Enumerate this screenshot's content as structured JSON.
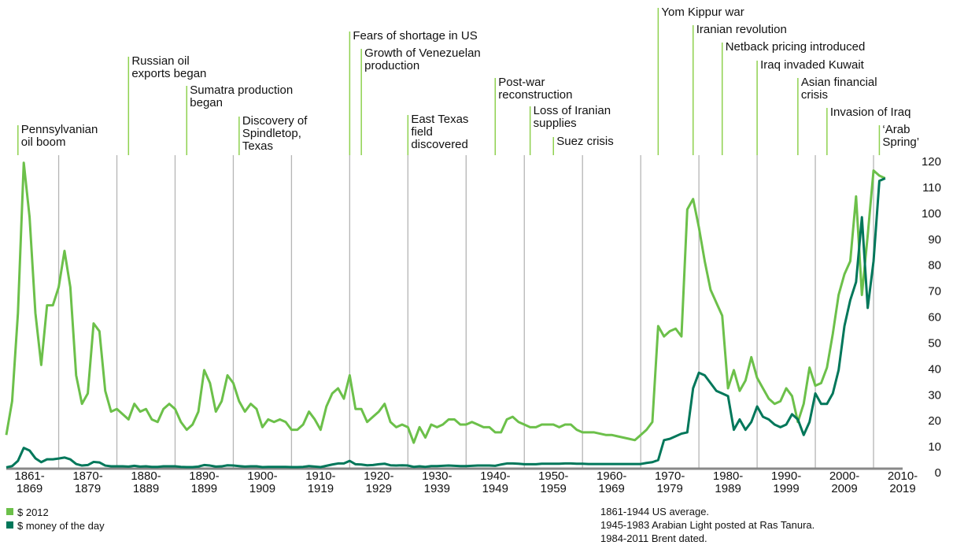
{
  "chart_data": {
    "type": "line",
    "x": [
      1861,
      1862,
      1863,
      1864,
      1865,
      1866,
      1867,
      1868,
      1869,
      1870,
      1871,
      1872,
      1873,
      1874,
      1875,
      1876,
      1877,
      1878,
      1879,
      1880,
      1881,
      1882,
      1883,
      1884,
      1885,
      1886,
      1887,
      1888,
      1889,
      1890,
      1891,
      1892,
      1893,
      1894,
      1895,
      1896,
      1897,
      1898,
      1899,
      1900,
      1901,
      1902,
      1903,
      1904,
      1905,
      1906,
      1907,
      1908,
      1909,
      1910,
      1911,
      1912,
      1913,
      1914,
      1915,
      1916,
      1917,
      1918,
      1919,
      1920,
      1921,
      1922,
      1923,
      1924,
      1925,
      1926,
      1927,
      1928,
      1929,
      1930,
      1931,
      1932,
      1933,
      1934,
      1935,
      1936,
      1937,
      1938,
      1939,
      1940,
      1941,
      1942,
      1943,
      1944,
      1945,
      1946,
      1947,
      1948,
      1949,
      1950,
      1951,
      1952,
      1953,
      1954,
      1955,
      1956,
      1957,
      1958,
      1959,
      1960,
      1961,
      1962,
      1963,
      1964,
      1965,
      1966,
      1967,
      1968,
      1969,
      1970,
      1971,
      1972,
      1973,
      1974,
      1975,
      1976,
      1977,
      1978,
      1979,
      1980,
      1981,
      1982,
      1983,
      1984,
      1985,
      1986,
      1987,
      1988,
      1989,
      1990,
      1991,
      1992,
      1993,
      1994,
      1995,
      1996,
      1997,
      1998,
      1999,
      2000,
      2001,
      2002,
      2003,
      2004,
      2005,
      2006,
      2007,
      2008,
      2009,
      2010,
      2011,
      2012
    ],
    "series": [
      {
        "name": "$ 2012",
        "color": "#6cc04a",
        "values": [
          13,
          26,
          60,
          118,
          97,
          60,
          40,
          63,
          63,
          70,
          84,
          70,
          36,
          25,
          29,
          56,
          53,
          30,
          22,
          23,
          21,
          19,
          25,
          22,
          23,
          19,
          18,
          23,
          25,
          23,
          18,
          15,
          17,
          22,
          38,
          33,
          22,
          26,
          36,
          33,
          26,
          22,
          25,
          23,
          16,
          19,
          18,
          19,
          18,
          15,
          15,
          17,
          22,
          19,
          15,
          24,
          29,
          31,
          27,
          36,
          23,
          23,
          18,
          20,
          22,
          25,
          18,
          16,
          17,
          16,
          10,
          16,
          12,
          17,
          16,
          17,
          19,
          19,
          17,
          17,
          18,
          17,
          16,
          16,
          14,
          14,
          19,
          20,
          18,
          17,
          16,
          16,
          17,
          17,
          17,
          16,
          17,
          17,
          15,
          14,
          14,
          14,
          13.5,
          13,
          13,
          12.5,
          12,
          11.5,
          11,
          13,
          15,
          18,
          55,
          51,
          53,
          54,
          51,
          100,
          104,
          93,
          80,
          69,
          64,
          59,
          31,
          38,
          30,
          34,
          43,
          35,
          31,
          27,
          25,
          26,
          31,
          28,
          18,
          25,
          39,
          32,
          33,
          39,
          52,
          67,
          75,
          80,
          105,
          67,
          90,
          115,
          113,
          112
        ]
      },
      {
        "name": "$ money of the day",
        "color": "#00775a",
        "values": [
          0.5,
          1,
          3,
          8,
          7,
          4,
          2.5,
          3.6,
          3.6,
          3.9,
          4.3,
          3.6,
          1.8,
          1.2,
          1.4,
          2.6,
          2.4,
          1.2,
          0.9,
          0.9,
          0.9,
          0.8,
          1.1,
          0.8,
          0.9,
          0.7,
          0.7,
          0.9,
          0.9,
          0.9,
          0.7,
          0.6,
          0.6,
          0.8,
          1.4,
          1.2,
          0.8,
          0.9,
          1.3,
          1.2,
          1,
          0.8,
          0.9,
          0.9,
          0.6,
          0.7,
          0.7,
          0.7,
          0.7,
          0.6,
          0.6,
          0.7,
          1,
          0.8,
          0.6,
          1.1,
          1.6,
          2,
          2,
          3,
          1.7,
          1.6,
          1.3,
          1.4,
          1.7,
          1.9,
          1.3,
          1.2,
          1.3,
          1.2,
          0.7,
          0.9,
          0.7,
          1,
          1,
          1.1,
          1.2,
          1.1,
          1,
          1,
          1.1,
          1.2,
          1.2,
          1.2,
          1.1,
          1.6,
          2,
          2,
          1.9,
          1.7,
          1.7,
          1.7,
          1.9,
          1.9,
          1.9,
          1.9,
          2,
          2,
          1.9,
          1.9,
          1.8,
          1.8,
          1.8,
          1.8,
          1.8,
          1.8,
          1.8,
          1.8,
          1.8,
          1.8,
          2.2,
          2.5,
          3.3,
          11,
          11.5,
          12.5,
          13.5,
          14,
          31,
          37,
          36,
          33,
          30,
          29,
          28,
          15,
          19,
          15,
          18,
          24,
          20,
          19,
          17,
          16,
          17,
          21,
          19,
          13,
          18,
          29,
          25,
          25,
          29,
          38,
          55,
          65,
          72,
          97,
          62,
          80,
          111,
          112
        ]
      }
    ],
    "xlim": [
      1861,
      2015
    ],
    "xgrid": [
      1870,
      1880,
      1890,
      1900,
      1910,
      1920,
      1930,
      1940,
      1950,
      1960,
      1970,
      1980,
      1990,
      2000,
      2010
    ],
    "xticks": [
      {
        "value": 1865,
        "label": "1861-\n1869"
      },
      {
        "value": 1875,
        "label": "1870-\n1879"
      },
      {
        "value": 1885,
        "label": "1880-\n1889"
      },
      {
        "value": 1895,
        "label": "1890-\n1899"
      },
      {
        "value": 1905,
        "label": "1900-\n1909"
      },
      {
        "value": 1915,
        "label": "1910-\n1919"
      },
      {
        "value": 1925,
        "label": "1920-\n1929"
      },
      {
        "value": 1935,
        "label": "1930-\n1939"
      },
      {
        "value": 1945,
        "label": "1940-\n1949"
      },
      {
        "value": 1955,
        "label": "1950-\n1959"
      },
      {
        "value": 1965,
        "label": "1960-\n1969"
      },
      {
        "value": 1975,
        "label": "1970-\n1979"
      },
      {
        "value": 1985,
        "label": "1980-\n1989"
      },
      {
        "value": 1995,
        "label": "1990-\n1999"
      },
      {
        "value": 2005,
        "label": "2000-\n2009"
      },
      {
        "value": 2015,
        "label": "2010-\n2019"
      }
    ],
    "ylim": [
      0,
      120
    ],
    "yticks": [
      0,
      10,
      20,
      30,
      40,
      50,
      60,
      70,
      80,
      90,
      100,
      110,
      120
    ],
    "annotation_color": "#8fd14f",
    "annotations": [
      {
        "x": 1863,
        "text": "Pennsylvanian\noil boom"
      },
      {
        "x": 1882,
        "text": "Russian oil\nexports began"
      },
      {
        "x": 1892,
        "text": "Sumatra production\nbegan"
      },
      {
        "x": 1901,
        "text": "Discovery of\nSpindletop,\nTexas"
      },
      {
        "x": 1920,
        "text": "Fears of shortage in US"
      },
      {
        "x": 1922,
        "text": "Growth of Venezuelan\nproduction"
      },
      {
        "x": 1930,
        "text": "East Texas\nfield\ndiscovered"
      },
      {
        "x": 1945,
        "text": "Post-war\nreconstruction"
      },
      {
        "x": 1951,
        "text": "Loss of Iranian\nsupplies"
      },
      {
        "x": 1955,
        "text": "Suez crisis"
      },
      {
        "x": 1973,
        "text": "Yom Kippur war"
      },
      {
        "x": 1979,
        "text": "Iranian revolution"
      },
      {
        "x": 1984,
        "text": "Netback pricing introduced"
      },
      {
        "x": 1990,
        "text": "Iraq invaded Kuwait"
      },
      {
        "x": 1997,
        "text": "Asian financial\ncrisis"
      },
      {
        "x": 2002,
        "text": "Invasion of Iraq"
      },
      {
        "x": 2011,
        "text": "‘Arab\nSpring’"
      }
    ],
    "notes": [
      "1861-1944 US average.",
      "1945-1983 Arabian Light posted at Ras Tanura.",
      "1984-2011 Brent dated."
    ]
  }
}
